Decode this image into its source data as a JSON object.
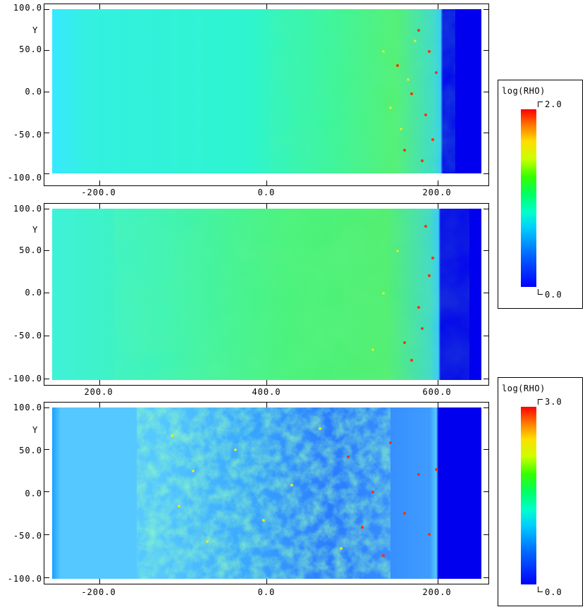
{
  "panels": [
    {
      "y_label": "Y",
      "y_ticks": [
        "100.0",
        "50.0",
        "0.0",
        "-50.0",
        "-100.0"
      ],
      "x_ticks": [
        "-200.0",
        "0.0",
        "200.0"
      ]
    },
    {
      "y_label": "Y",
      "y_ticks": [
        "100.0",
        "50.0",
        "0.0",
        "-50.0",
        "-100.0"
      ],
      "x_ticks": [
        "200.0",
        "400.0",
        "600.0"
      ]
    },
    {
      "y_label": "Y",
      "y_ticks": [
        "100.0",
        "50.0",
        "0.0",
        "-50.0",
        "-100.0"
      ],
      "x_ticks": [
        "-200.0",
        "0.0",
        "200.0"
      ]
    }
  ],
  "colorbars": [
    {
      "title": "log(RHO)",
      "max": "2.0",
      "min": "0.0"
    },
    {
      "title": "log(RHO)",
      "max": "3.0",
      "min": "0.0"
    }
  ],
  "colors": {
    "ambient": "#0000ee",
    "shocked_high": "#40ff40",
    "shocked_low": "#33ddff"
  }
}
